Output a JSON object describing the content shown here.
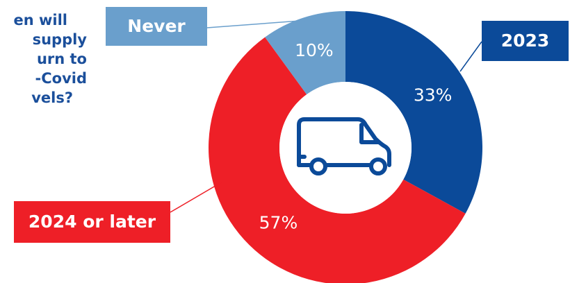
{
  "chart_data": {
    "type": "donut",
    "title_lines": [
      "en will",
      "supply",
      "urn to",
      "-Covid",
      "vels?"
    ],
    "categories": [
      "2023",
      "2024 or later",
      "Never"
    ],
    "values": [
      33,
      57,
      10
    ],
    "value_labels": [
      "33%",
      "57%",
      "10%"
    ],
    "colors": [
      "#0b4a99",
      "#ee1f27",
      "#6a9fcc"
    ]
  }
}
